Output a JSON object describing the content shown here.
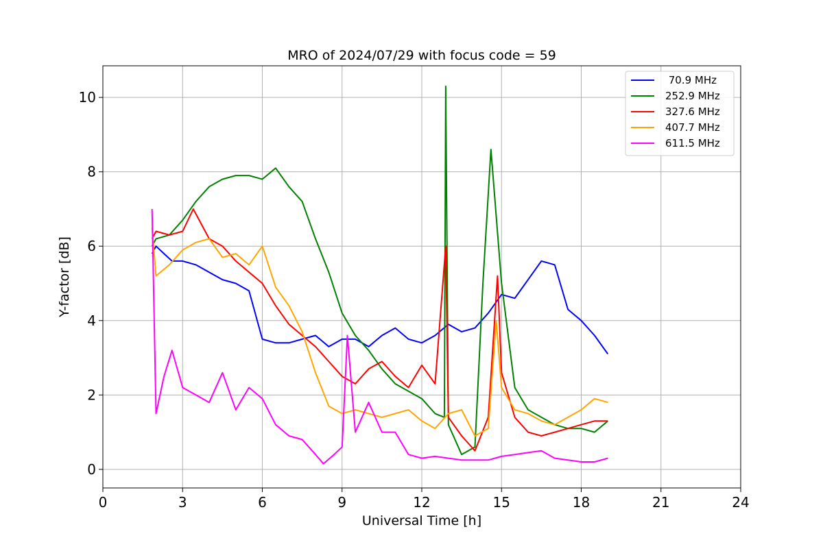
{
  "chart_data": {
    "type": "line",
    "title": "MRO of 2024/07/29 with focus code = 59",
    "xlabel": "Universal Time [h]",
    "ylabel": "Y-factor [dB]",
    "xlim": [
      0,
      24
    ],
    "ylim": [
      -0.5,
      10.85
    ],
    "xticks": [
      0,
      3,
      6,
      9,
      12,
      15,
      18,
      21,
      24
    ],
    "yticks": [
      0,
      2,
      4,
      6,
      8,
      10
    ],
    "grid": true,
    "legend_position": "top-right",
    "series": [
      {
        "name": " 70.9 MHz",
        "color": "#0000ff",
        "x": [
          1.85,
          2.0,
          2.3,
          2.6,
          3.0,
          3.5,
          4.0,
          4.5,
          5.0,
          5.5,
          6.0,
          6.5,
          7.0,
          7.5,
          8.0,
          8.5,
          9.0,
          9.5,
          10.0,
          10.5,
          11.0,
          11.5,
          12.0,
          12.5,
          13.0,
          13.5,
          14.0,
          14.5,
          15.0,
          15.5,
          16.0,
          16.5,
          17.0,
          17.5,
          18.0,
          18.5,
          19.0
        ],
        "y": [
          5.8,
          6.0,
          5.8,
          5.6,
          5.6,
          5.5,
          5.3,
          5.1,
          5.0,
          4.8,
          3.5,
          3.4,
          3.4,
          3.5,
          3.6,
          3.3,
          3.5,
          3.5,
          3.3,
          3.6,
          3.8,
          3.5,
          3.4,
          3.6,
          3.9,
          3.7,
          3.8,
          4.2,
          4.7,
          4.6,
          5.1,
          5.6,
          5.5,
          4.3,
          4.0,
          3.6,
          3.1
        ]
      },
      {
        "name": "252.9 MHz",
        "color": "#008000",
        "x": [
          1.85,
          2.0,
          2.5,
          3.0,
          3.5,
          4.0,
          4.5,
          5.0,
          5.5,
          6.0,
          6.5,
          7.0,
          7.5,
          8.0,
          8.5,
          9.0,
          9.5,
          10.0,
          10.5,
          11.0,
          11.5,
          12.0,
          12.5,
          12.85,
          12.9,
          13.0,
          13.5,
          14.0,
          14.3,
          14.6,
          15.0,
          15.5,
          16.0,
          16.5,
          17.0,
          17.5,
          18.0,
          18.5,
          19.0
        ],
        "y": [
          6.0,
          6.2,
          6.3,
          6.7,
          7.2,
          7.6,
          7.8,
          7.9,
          7.9,
          7.8,
          8.1,
          7.6,
          7.2,
          6.2,
          5.3,
          4.2,
          3.6,
          3.2,
          2.7,
          2.3,
          2.1,
          1.9,
          1.5,
          1.4,
          10.3,
          1.2,
          0.4,
          0.6,
          5.0,
          8.6,
          5.0,
          2.2,
          1.6,
          1.4,
          1.2,
          1.1,
          1.1,
          1.0,
          1.3
        ]
      },
      {
        "name": "327.6 MHz",
        "color": "#ff0000",
        "x": [
          1.85,
          2.0,
          2.5,
          3.0,
          3.4,
          4.0,
          4.5,
          5.0,
          5.5,
          6.0,
          6.5,
          7.0,
          7.5,
          8.0,
          8.5,
          9.0,
          9.5,
          10.0,
          10.5,
          11.0,
          11.5,
          12.0,
          12.5,
          12.9,
          13.0,
          13.5,
          14.0,
          14.5,
          14.85,
          15.0,
          15.5,
          16.0,
          16.5,
          17.0,
          17.5,
          18.0,
          18.5,
          19.0
        ],
        "y": [
          6.2,
          6.4,
          6.3,
          6.4,
          7.0,
          6.2,
          6.0,
          5.6,
          5.3,
          5.0,
          4.4,
          3.9,
          3.6,
          3.3,
          2.9,
          2.5,
          2.3,
          2.7,
          2.9,
          2.5,
          2.2,
          2.8,
          2.3,
          6.0,
          1.4,
          0.9,
          0.5,
          1.4,
          5.2,
          2.6,
          1.4,
          1.0,
          0.9,
          1.0,
          1.1,
          1.2,
          1.3,
          1.3
        ]
      },
      {
        "name": "407.7 MHz",
        "color": "#ffa500",
        "x": [
          1.85,
          2.0,
          2.5,
          3.0,
          3.5,
          4.0,
          4.5,
          5.0,
          5.5,
          6.0,
          6.5,
          7.0,
          7.5,
          8.0,
          8.5,
          9.0,
          9.5,
          10.0,
          10.5,
          11.0,
          11.5,
          12.0,
          12.5,
          13.0,
          13.5,
          14.0,
          14.5,
          14.8,
          15.0,
          15.5,
          16.0,
          16.5,
          17.0,
          17.5,
          18.0,
          18.5,
          19.0
        ],
        "y": [
          6.5,
          5.2,
          5.5,
          5.9,
          6.1,
          6.2,
          5.7,
          5.8,
          5.5,
          6.0,
          4.9,
          4.4,
          3.7,
          2.6,
          1.7,
          1.5,
          1.6,
          1.5,
          1.4,
          1.5,
          1.6,
          1.3,
          1.1,
          1.5,
          1.6,
          0.9,
          1.1,
          4.0,
          2.2,
          1.6,
          1.5,
          1.3,
          1.2,
          1.4,
          1.6,
          1.9,
          1.8
        ]
      },
      {
        "name": "611.5 MHz",
        "color": "#ff00ff",
        "x": [
          1.85,
          2.0,
          2.3,
          2.6,
          3.0,
          3.5,
          4.0,
          4.5,
          5.0,
          5.5,
          6.0,
          6.5,
          7.0,
          7.5,
          8.0,
          8.3,
          8.7,
          9.0,
          9.2,
          9.5,
          10.0,
          10.5,
          11.0,
          11.5,
          12.0,
          12.5,
          13.0,
          13.5,
          14.0,
          14.5,
          15.0,
          15.5,
          16.0,
          16.5,
          17.0,
          17.5,
          18.0,
          18.5,
          19.0
        ],
        "y": [
          7.0,
          1.5,
          2.5,
          3.2,
          2.2,
          2.0,
          1.8,
          2.6,
          1.6,
          2.2,
          1.9,
          1.2,
          0.9,
          0.8,
          0.4,
          0.15,
          0.4,
          0.6,
          3.6,
          1.0,
          1.8,
          1.0,
          1.0,
          0.4,
          0.3,
          0.35,
          0.3,
          0.25,
          0.25,
          0.25,
          0.35,
          0.4,
          0.45,
          0.5,
          0.3,
          0.25,
          0.2,
          0.2,
          0.3
        ]
      }
    ]
  }
}
